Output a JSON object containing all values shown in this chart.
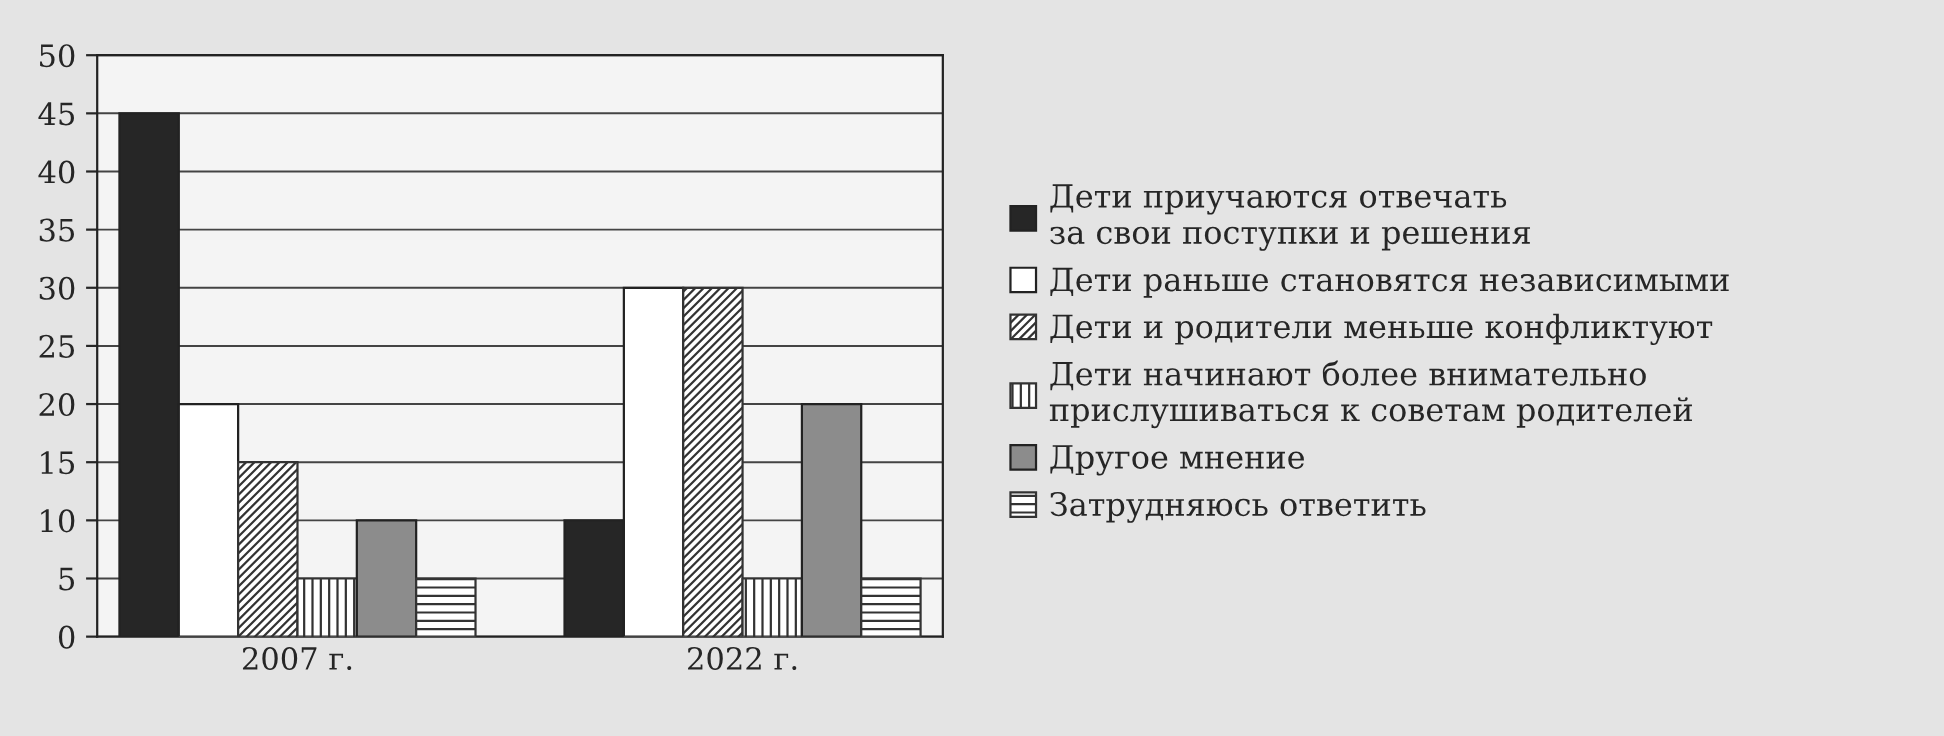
{
  "chart_data": {
    "type": "bar",
    "categories": [
      "2007 г.",
      "2022 г."
    ],
    "series": [
      {
        "name": "Дети приучаются отвечать\nза свои поступки и решения",
        "color": "#262626",
        "values": [
          45,
          10
        ]
      },
      {
        "name": "Дети раньше становятся независимыми",
        "color": "#ffffff",
        "values": [
          20,
          30
        ]
      },
      {
        "name": "Дети и родители меньше конфликтуют",
        "color": "#333333",
        "values": [
          15,
          30
        ]
      },
      {
        "name": "Дети начинают более внимательно\nприслушиваться к советам родителей",
        "color": "#333333",
        "values": [
          5,
          5
        ]
      },
      {
        "name": "Другое мнение",
        "color": "#8c8c8c",
        "values": [
          10,
          20
        ]
      },
      {
        "name": "Затрудняюсь ответить",
        "color": "#333333",
        "values": [
          5,
          5
        ]
      }
    ],
    "ylim": [
      0,
      50
    ],
    "yticks": [
      0,
      5,
      10,
      15,
      20,
      25,
      30,
      35,
      40,
      45,
      50
    ],
    "grid": "y",
    "legend": "right"
  }
}
